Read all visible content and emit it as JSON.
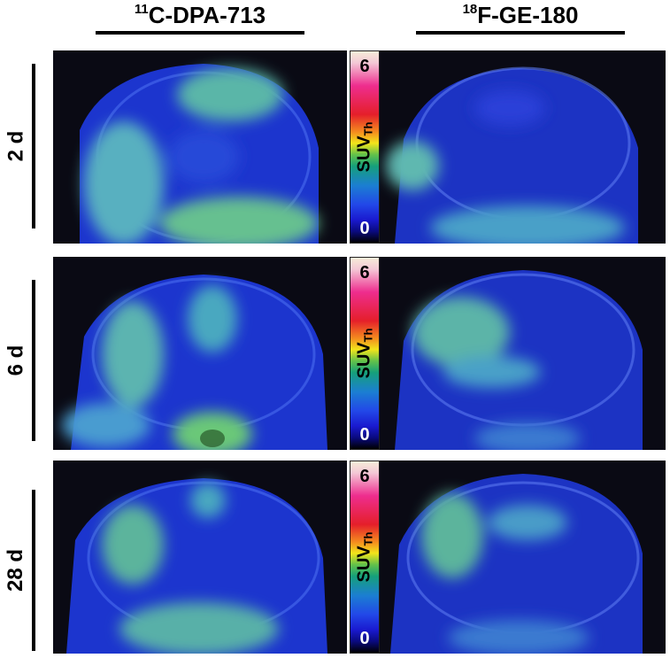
{
  "columns": {
    "left": {
      "sup": "11",
      "label": "C-DPA-713"
    },
    "right": {
      "sup": "18",
      "label": "F-GE-180"
    }
  },
  "rows": [
    {
      "label": "2 d"
    },
    {
      "label": "6 d"
    },
    {
      "label": "28 d"
    }
  ],
  "colorbar": {
    "max": "6",
    "min": "0",
    "label_main": "SUV",
    "label_sub": "Th",
    "colors": [
      "#f6ecd8",
      "#ee2d8e",
      "#e51f2a",
      "#f48a1f",
      "#f2e41b",
      "#63c14a",
      "#16a07a",
      "#1b7fd1",
      "#2248e8",
      "#0a0a80",
      "#000000"
    ]
  },
  "images": {
    "palette": {
      "background": "#0a0a14",
      "skull": "#2840e0",
      "uptake_low": "#3a8ad8",
      "uptake_high": "#5ec08a"
    }
  }
}
